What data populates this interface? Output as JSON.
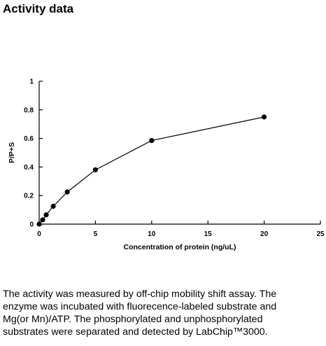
{
  "page": {
    "title": "Activity data",
    "description_lines": [
      "The activity was measured by off-chip mobility shift assay. The",
      "enzyme was incubated with fluorecence-labeled  substrate and",
      "Mg(or Mn)/ATP. The phosphorylated and unphosphorylated",
      "substrates were separated and detected by LabChip™3000."
    ]
  },
  "chart_data": {
    "type": "line",
    "title": "",
    "xlabel": "Concentration of protein (ng/uL)",
    "ylabel": "P/P+S",
    "xlim": [
      0,
      25
    ],
    "ylim": [
      0,
      1
    ],
    "xticks": [
      0,
      5,
      10,
      15,
      20,
      25
    ],
    "yticks": [
      0,
      0.2,
      0.4,
      0.6,
      0.8,
      1
    ],
    "ytick_labels": [
      "0",
      "0.2",
      "0.4",
      "0.6",
      "0.8",
      "1"
    ],
    "grid": false,
    "legend": false,
    "colors": {
      "line": "#000000",
      "marker": "#000000"
    },
    "series": [
      {
        "x": [
          0,
          0.3125,
          0.625,
          1.25,
          2.5,
          5,
          10,
          20
        ],
        "y": [
          0,
          0.03,
          0.065,
          0.125,
          0.225,
          0.38,
          0.585,
          0.75
        ]
      }
    ]
  }
}
